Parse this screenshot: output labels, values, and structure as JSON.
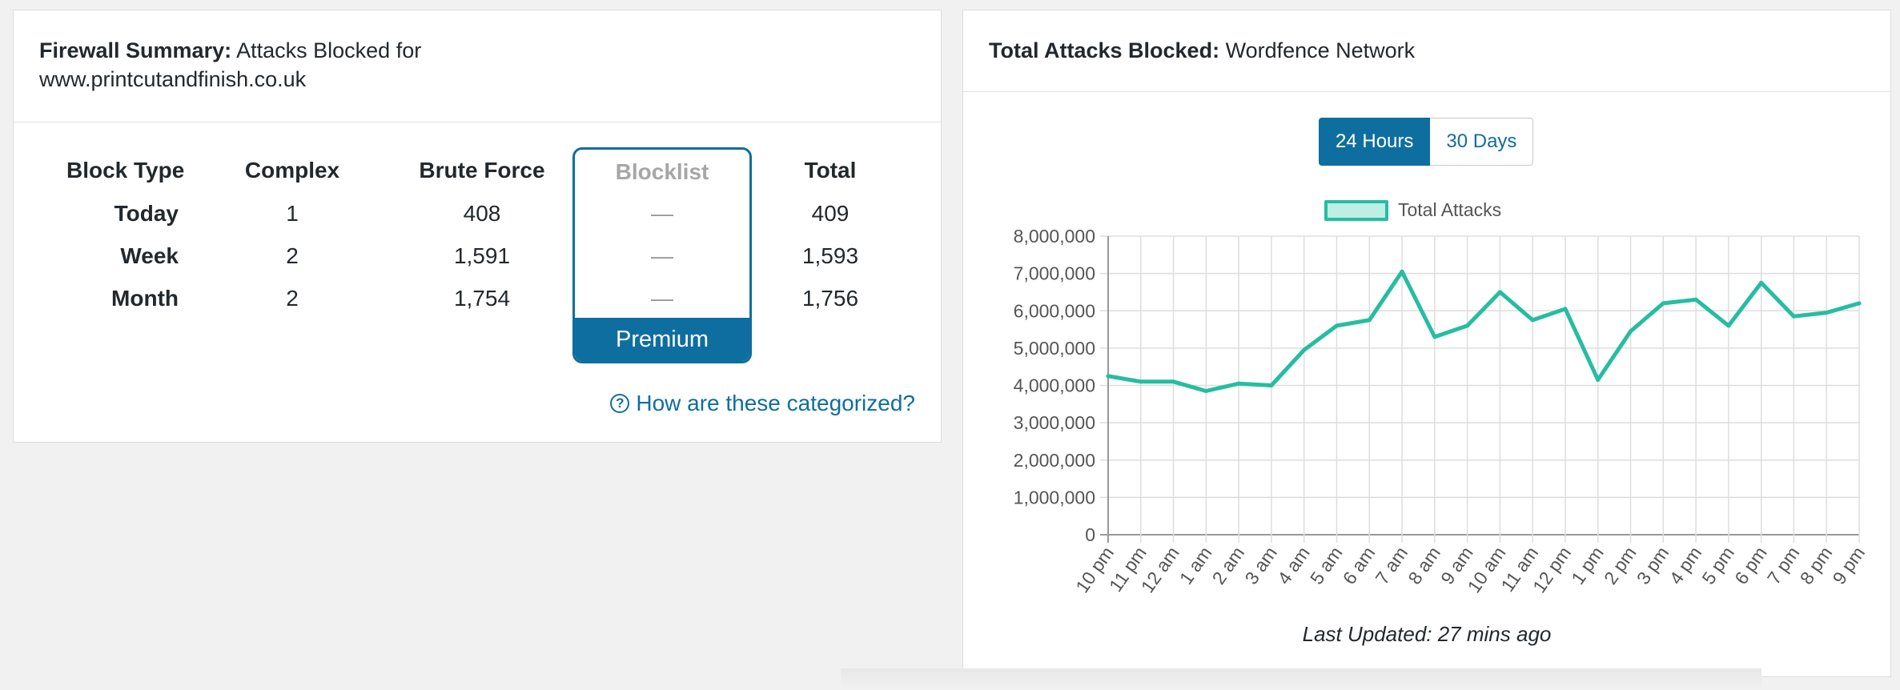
{
  "firewall": {
    "title_bold": "Firewall Summary:",
    "title_rest": "Attacks Blocked for www.printcutandfinish.co.uk",
    "columns": [
      "Block Type",
      "Complex",
      "Brute Force",
      "Blocklist",
      "Total"
    ],
    "rows": [
      {
        "label": "Today",
        "complex": "1",
        "brute": "408",
        "blocklist": "—",
        "total": "409"
      },
      {
        "label": "Week",
        "complex": "2",
        "brute": "1,591",
        "blocklist": "—",
        "total": "1,593"
      },
      {
        "label": "Month",
        "complex": "2",
        "brute": "1,754",
        "blocklist": "—",
        "total": "1,756"
      }
    ],
    "premium_label": "Premium",
    "help_link": "How are these categorized?",
    "help_icon": "question-circle-icon"
  },
  "network": {
    "title_bold": "Total Attacks Blocked:",
    "title_rest": "Wordfence Network",
    "toggle": {
      "active": "24 Hours",
      "inactive": "30 Days"
    },
    "legend": "Total Attacks",
    "updated": "Last Updated: 27 mins ago"
  },
  "colors": {
    "accent": "#0f6ea0",
    "line": "#26bda0",
    "fill": "#bfeee4"
  },
  "chart_data": {
    "type": "line",
    "title": "",
    "xlabel": "",
    "ylabel": "",
    "ylim": [
      0,
      8000000
    ],
    "y_ticks": [
      "8,000,000",
      "7,000,000",
      "6,000,000",
      "5,000,000",
      "4,000,000",
      "3,000,000",
      "2,000,000",
      "1,000,000",
      "0"
    ],
    "y_tick_values": [
      8000000,
      7000000,
      6000000,
      5000000,
      4000000,
      3000000,
      2000000,
      1000000,
      0
    ],
    "categories": [
      "10 pm",
      "11 pm",
      "12 am",
      "1 am",
      "2 am",
      "3 am",
      "4 am",
      "5 am",
      "6 am",
      "7 am",
      "8 am",
      "9 am",
      "10 am",
      "11 am",
      "12 pm",
      "1 pm",
      "2 pm",
      "3 pm",
      "4 pm",
      "5 pm",
      "6 pm",
      "7 pm",
      "8 pm",
      "9 pm"
    ],
    "series": [
      {
        "name": "Total Attacks",
        "values": [
          4250000,
          4100000,
          4100000,
          3850000,
          4050000,
          4000000,
          4950000,
          5600000,
          5750000,
          7050000,
          5300000,
          5600000,
          6500000,
          5750000,
          6050000,
          4150000,
          5450000,
          6200000,
          6300000,
          5600000,
          6750000,
          5850000,
          5950000,
          6200000
        ]
      }
    ]
  }
}
